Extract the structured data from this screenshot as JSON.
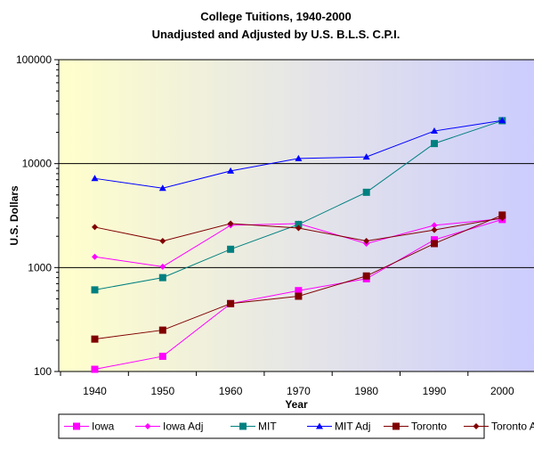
{
  "chart_data": {
    "type": "line",
    "title": "College Tuitions, 1940-2000",
    "subtitle": "Unadjusted and Adjusted by U.S. B.L.S. C.P.I.",
    "xlabel": "Year",
    "ylabel": "U.S. Dollars",
    "yscale": "log",
    "ylim": [
      100,
      100000
    ],
    "x": [
      1940,
      1950,
      1960,
      1970,
      1980,
      1990,
      2000
    ],
    "y_ticks": [
      100,
      1000,
      10000,
      100000
    ],
    "y_tick_labels": [
      "100",
      "1000",
      "10000",
      "100000"
    ],
    "x_tick_labels": [
      "1940",
      "1950",
      "1960",
      "1970",
      "1980",
      "1990",
      "2000"
    ],
    "grid": "horizontal major",
    "legend_position": "bottom",
    "background": "gradient light yellow to lavender",
    "series": [
      {
        "name": "Iowa",
        "color": "#ff00ff",
        "marker": "square",
        "values": [
          105,
          140,
          450,
          600,
          780,
          1850,
          2900
        ]
      },
      {
        "name": "Iowa Adj",
        "color": "#ff00ff",
        "marker": "diamond",
        "values": [
          1270,
          1020,
          2550,
          2650,
          1700,
          2550,
          2950
        ]
      },
      {
        "name": "MIT",
        "color": "#008080",
        "marker": "square",
        "values": [
          610,
          800,
          1500,
          2600,
          5300,
          15600,
          25900
        ]
      },
      {
        "name": "MIT Adj",
        "color": "#0000ff",
        "marker": "triangle",
        "values": [
          7200,
          5800,
          8500,
          11200,
          11600,
          20600,
          26000
        ]
      },
      {
        "name": "Toronto",
        "color": "#800000",
        "marker": "square",
        "values": [
          205,
          250,
          450,
          530,
          830,
          1700,
          3200
        ]
      },
      {
        "name": "Toronto Adj",
        "color": "#800000",
        "marker": "diamond",
        "values": [
          2450,
          1800,
          2650,
          2400,
          1800,
          2300,
          3000
        ]
      }
    ]
  }
}
